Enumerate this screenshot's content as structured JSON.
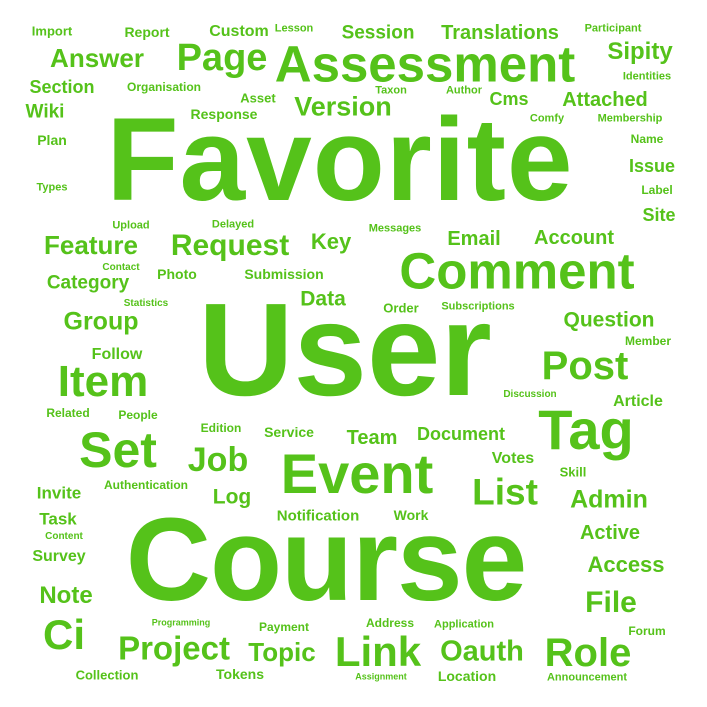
{
  "colors": {
    "word": "#55c21a",
    "background": "#ffffff"
  },
  "words": [
    {
      "text": "Favorite"
    },
    {
      "text": "User"
    },
    {
      "text": "Course"
    },
    {
      "text": "Assessment"
    },
    {
      "text": "Comment"
    },
    {
      "text": "Event"
    },
    {
      "text": "Tag"
    },
    {
      "text": "Item"
    },
    {
      "text": "Set"
    },
    {
      "text": "Page"
    },
    {
      "text": "Post"
    },
    {
      "text": "Link"
    },
    {
      "text": "Ci"
    },
    {
      "text": "Role"
    },
    {
      "text": "Project"
    },
    {
      "text": "List"
    },
    {
      "text": "Job"
    },
    {
      "text": "Request"
    },
    {
      "text": "Answer"
    },
    {
      "text": "Version"
    },
    {
      "text": "Feature"
    },
    {
      "text": "File"
    },
    {
      "text": "Group"
    },
    {
      "text": "Admin"
    },
    {
      "text": "Oauth"
    },
    {
      "text": "Topic"
    },
    {
      "text": "Sipity"
    },
    {
      "text": "Translations"
    },
    {
      "text": "Session"
    },
    {
      "text": "Account"
    },
    {
      "text": "Question"
    },
    {
      "text": "Access"
    },
    {
      "text": "Note"
    },
    {
      "text": "Key"
    },
    {
      "text": "Email"
    },
    {
      "text": "Attached"
    },
    {
      "text": "Category"
    },
    {
      "text": "Data"
    },
    {
      "text": "Team"
    },
    {
      "text": "Document"
    },
    {
      "text": "Active"
    },
    {
      "text": "Log"
    },
    {
      "text": "Section"
    },
    {
      "text": "Wiki"
    },
    {
      "text": "Custom"
    },
    {
      "text": "Report"
    },
    {
      "text": "Issue"
    },
    {
      "text": "Site"
    },
    {
      "text": "Cms"
    },
    {
      "text": "Invite"
    },
    {
      "text": "Task"
    },
    {
      "text": "Survey"
    },
    {
      "text": "Follow"
    },
    {
      "text": "Article"
    },
    {
      "text": "Votes"
    },
    {
      "text": "Response"
    },
    {
      "text": "Asset"
    },
    {
      "text": "Notification"
    },
    {
      "text": "Service"
    },
    {
      "text": "Work"
    },
    {
      "text": "Photo"
    },
    {
      "text": "Submission"
    },
    {
      "text": "Import"
    },
    {
      "text": "Organisation"
    },
    {
      "text": "Plan"
    },
    {
      "text": "Edition"
    },
    {
      "text": "People"
    },
    {
      "text": "Related"
    },
    {
      "text": "Authentication"
    },
    {
      "text": "Skill"
    },
    {
      "text": "Order"
    },
    {
      "text": "Collection"
    },
    {
      "text": "Tokens"
    },
    {
      "text": "Location"
    },
    {
      "text": "Payment"
    },
    {
      "text": "Address"
    },
    {
      "text": "Application"
    },
    {
      "text": "Forum"
    },
    {
      "text": "Announcement"
    },
    {
      "text": "Member"
    },
    {
      "text": "Label"
    },
    {
      "text": "Name"
    },
    {
      "text": "Lesson"
    },
    {
      "text": "Participant"
    },
    {
      "text": "Identities"
    },
    {
      "text": "Membership"
    },
    {
      "text": "Comfy"
    },
    {
      "text": "Author"
    },
    {
      "text": "Taxon"
    },
    {
      "text": "Messages"
    },
    {
      "text": "Delayed"
    },
    {
      "text": "Upload"
    },
    {
      "text": "Types"
    },
    {
      "text": "Contact"
    },
    {
      "text": "Statistics"
    },
    {
      "text": "Subscriptions"
    },
    {
      "text": "Discussion"
    },
    {
      "text": "Content"
    },
    {
      "text": "Programming"
    },
    {
      "text": "Assignment"
    }
  ]
}
